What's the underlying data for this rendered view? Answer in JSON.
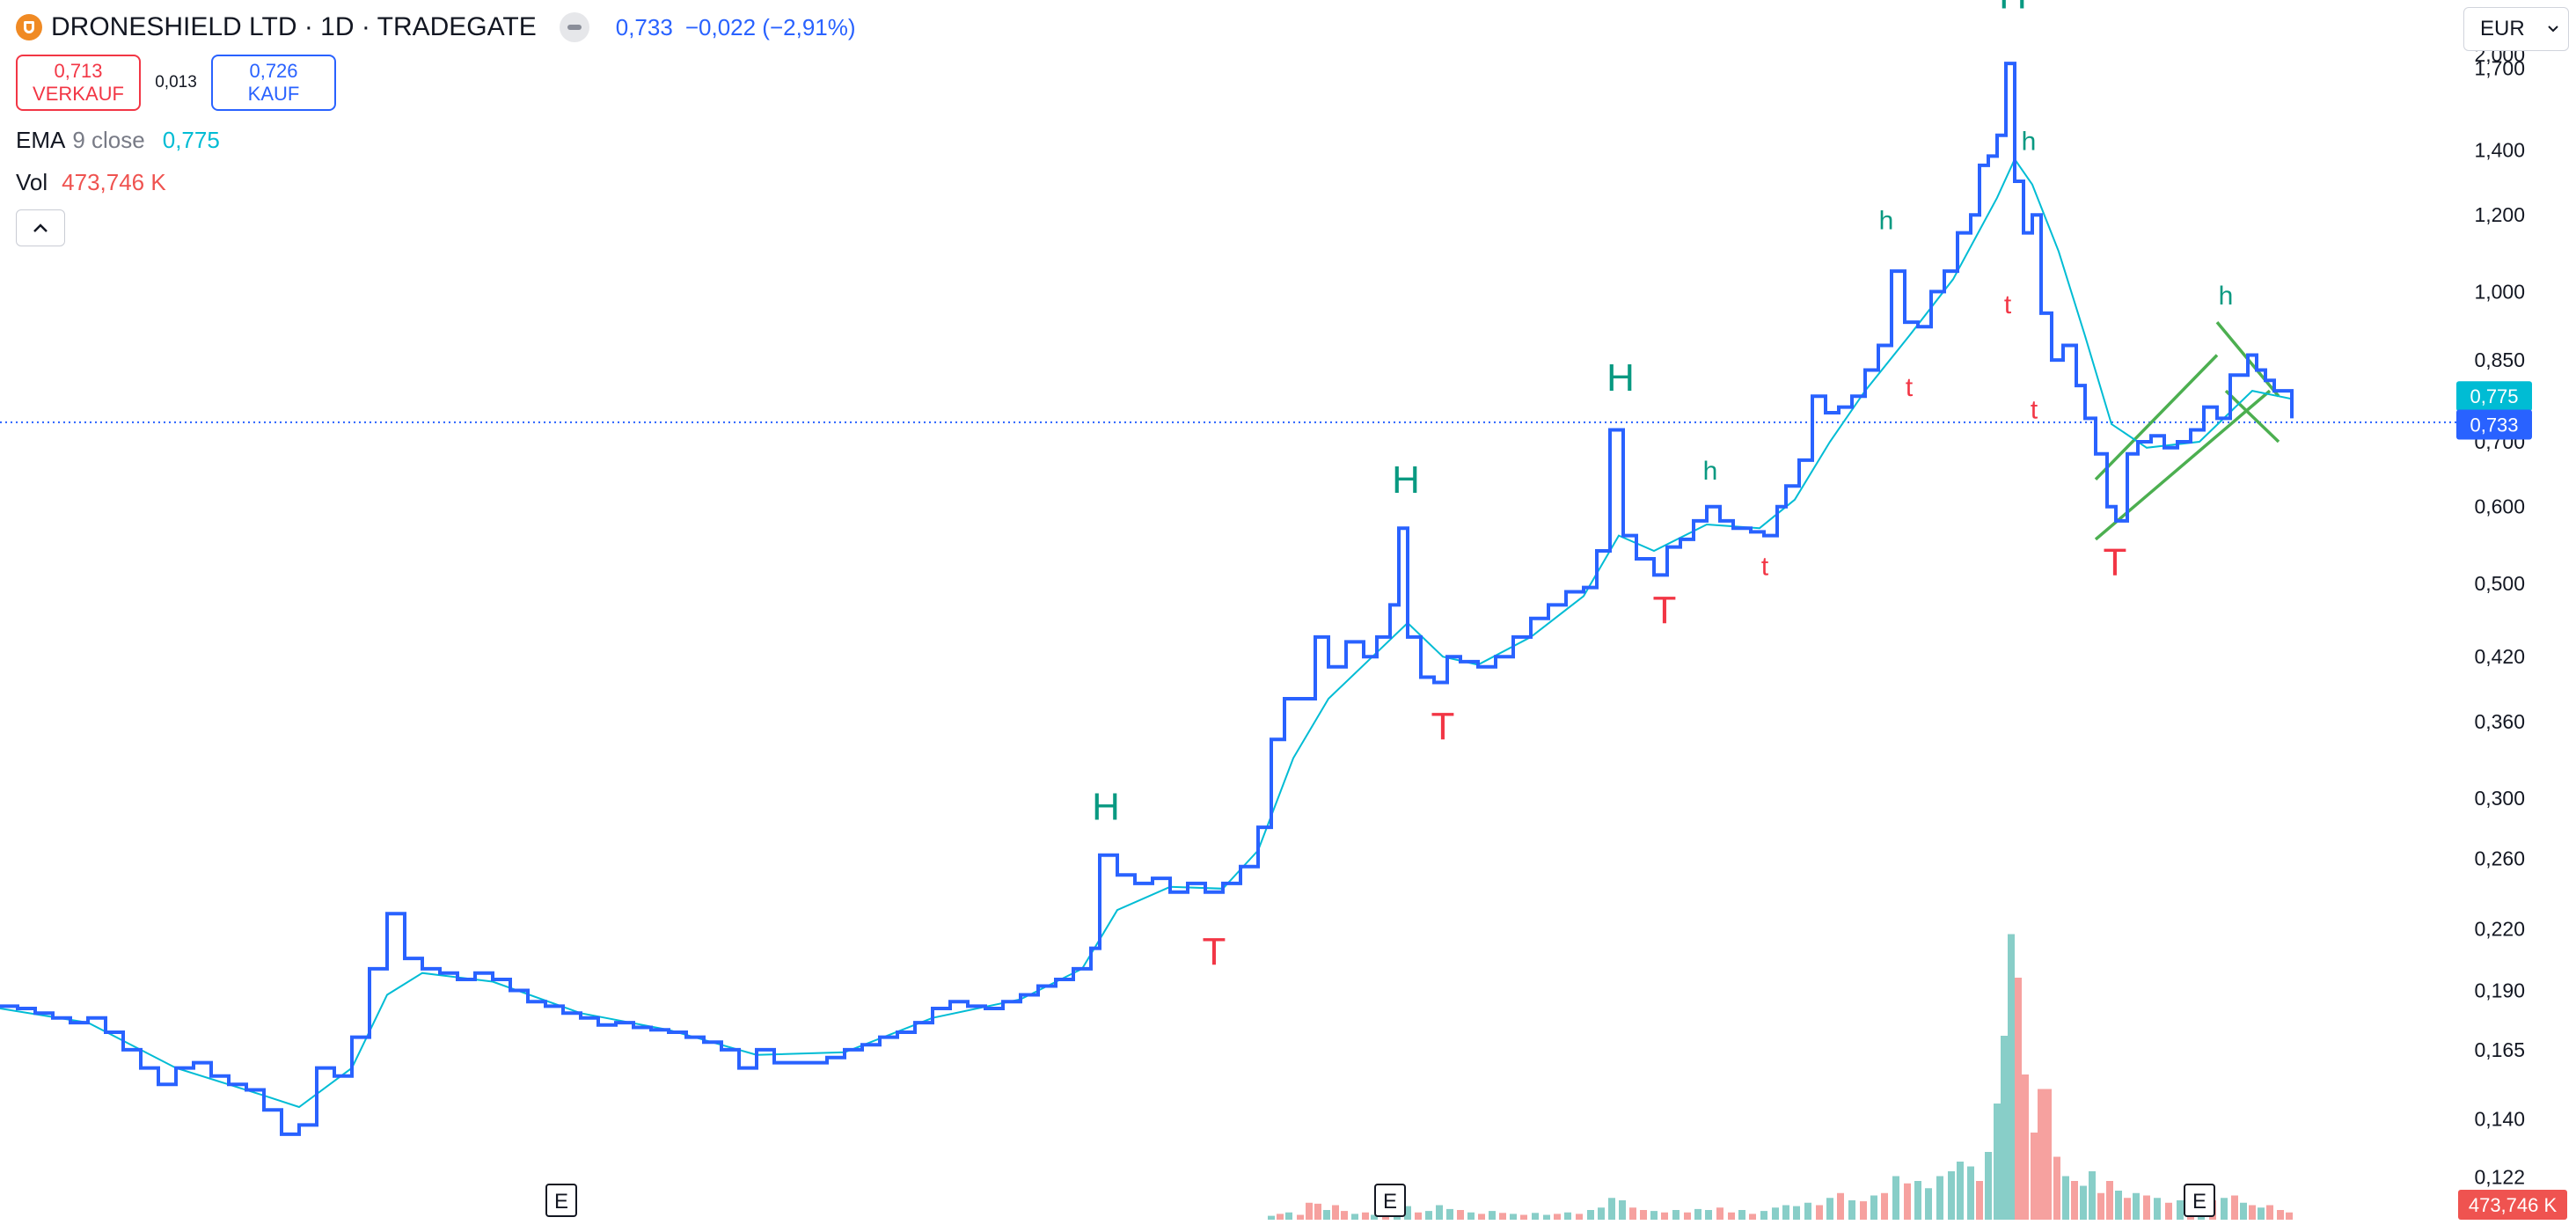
{
  "header": {
    "symbol_title": "DRONESHIELD LTD · 1D · TRADEGATE",
    "last_price": "0,733",
    "change": "−0,022 (−2,91%)"
  },
  "quote": {
    "sell_price": "0,713",
    "sell_label": "VERKAUF",
    "spread": "0,013",
    "buy_price": "0,726",
    "buy_label": "KAUF"
  },
  "indicators": {
    "ema_name": "EMA",
    "ema_params": "9 close",
    "ema_value": "0,775",
    "vol_name": "Vol",
    "vol_value": "473,746 K"
  },
  "currency": {
    "selected": "EUR"
  },
  "colors": {
    "price_line": "#2962ff",
    "ema_line": "#00bcd4",
    "channel": "#4caf50",
    "peak_label": "#089981",
    "trough_label": "#f23645",
    "vol_up": "#26a69a",
    "vol_down": "#ef5350"
  },
  "chart_data": {
    "type": "line",
    "scale": "log",
    "ylim": [
      0.107,
      2.0
    ],
    "y_ticks": [
      0.122,
      0.14,
      0.165,
      0.19,
      0.22,
      0.26,
      0.3,
      0.36,
      0.42,
      0.5,
      0.6,
      0.7,
      0.85,
      1.0,
      1.2,
      1.4,
      1.7
    ],
    "y_tick_labels": [
      "0,122",
      "0,140",
      "0,165",
      "0,190",
      "0,220",
      "0,260",
      "0,300",
      "0,360",
      "0,420",
      "0,500",
      "0,600",
      "0,700",
      "0,850",
      "1,000",
      "1,200",
      "1,400",
      "1,700"
    ],
    "partial_top_label": "2,000",
    "price_label": "0,733",
    "ema_label": "0,775",
    "volume_label": "473,746 K",
    "grid": false,
    "price_series": [
      [
        0,
        0.183
      ],
      [
        20,
        0.182
      ],
      [
        40,
        0.18
      ],
      [
        60,
        0.178
      ],
      [
        80,
        0.176
      ],
      [
        100,
        0.178
      ],
      [
        120,
        0.172
      ],
      [
        140,
        0.165
      ],
      [
        160,
        0.158
      ],
      [
        180,
        0.152
      ],
      [
        200,
        0.158
      ],
      [
        220,
        0.16
      ],
      [
        240,
        0.155
      ],
      [
        260,
        0.152
      ],
      [
        280,
        0.15
      ],
      [
        300,
        0.143
      ],
      [
        320,
        0.135
      ],
      [
        340,
        0.138
      ],
      [
        360,
        0.158
      ],
      [
        380,
        0.155
      ],
      [
        400,
        0.17
      ],
      [
        420,
        0.2
      ],
      [
        440,
        0.228
      ],
      [
        460,
        0.205
      ],
      [
        480,
        0.2
      ],
      [
        500,
        0.198
      ],
      [
        520,
        0.195
      ],
      [
        540,
        0.198
      ],
      [
        560,
        0.195
      ],
      [
        580,
        0.19
      ],
      [
        600,
        0.185
      ],
      [
        620,
        0.183
      ],
      [
        640,
        0.18
      ],
      [
        660,
        0.178
      ],
      [
        680,
        0.175
      ],
      [
        700,
        0.176
      ],
      [
        720,
        0.174
      ],
      [
        740,
        0.173
      ],
      [
        760,
        0.172
      ],
      [
        780,
        0.17
      ],
      [
        800,
        0.168
      ],
      [
        820,
        0.165
      ],
      [
        840,
        0.158
      ],
      [
        860,
        0.165
      ],
      [
        880,
        0.16
      ],
      [
        900,
        0.16
      ],
      [
        920,
        0.16
      ],
      [
        940,
        0.162
      ],
      [
        960,
        0.165
      ],
      [
        980,
        0.167
      ],
      [
        1000,
        0.17
      ],
      [
        1020,
        0.172
      ],
      [
        1040,
        0.176
      ],
      [
        1060,
        0.182
      ],
      [
        1080,
        0.185
      ],
      [
        1100,
        0.183
      ],
      [
        1120,
        0.182
      ],
      [
        1140,
        0.185
      ],
      [
        1160,
        0.188
      ],
      [
        1180,
        0.192
      ],
      [
        1200,
        0.195
      ],
      [
        1220,
        0.2
      ],
      [
        1240,
        0.21
      ],
      [
        1250,
        0.262
      ],
      [
        1270,
        0.25
      ],
      [
        1290,
        0.245
      ],
      [
        1310,
        0.248
      ],
      [
        1330,
        0.24
      ],
      [
        1350,
        0.245
      ],
      [
        1370,
        0.24
      ],
      [
        1390,
        0.245
      ],
      [
        1410,
        0.255
      ],
      [
        1430,
        0.28
      ],
      [
        1445,
        0.345
      ],
      [
        1460,
        0.38
      ],
      [
        1480,
        0.38
      ],
      [
        1495,
        0.44
      ],
      [
        1510,
        0.41
      ],
      [
        1530,
        0.435
      ],
      [
        1550,
        0.42
      ],
      [
        1565,
        0.44
      ],
      [
        1580,
        0.475
      ],
      [
        1590,
        0.57
      ],
      [
        1600,
        0.44
      ],
      [
        1615,
        0.4
      ],
      [
        1630,
        0.395
      ],
      [
        1645,
        0.42
      ],
      [
        1660,
        0.415
      ],
      [
        1680,
        0.41
      ],
      [
        1700,
        0.42
      ],
      [
        1720,
        0.44
      ],
      [
        1740,
        0.46
      ],
      [
        1760,
        0.475
      ],
      [
        1780,
        0.49
      ],
      [
        1800,
        0.495
      ],
      [
        1815,
        0.54
      ],
      [
        1830,
        0.72
      ],
      [
        1845,
        0.56
      ],
      [
        1860,
        0.53
      ],
      [
        1880,
        0.51
      ],
      [
        1895,
        0.545
      ],
      [
        1910,
        0.555
      ],
      [
        1925,
        0.58
      ],
      [
        1940,
        0.6
      ],
      [
        1955,
        0.58
      ],
      [
        1970,
        0.57
      ],
      [
        1990,
        0.565
      ],
      [
        2005,
        0.56
      ],
      [
        2020,
        0.6
      ],
      [
        2030,
        0.63
      ],
      [
        2045,
        0.67
      ],
      [
        2060,
        0.78
      ],
      [
        2075,
        0.75
      ],
      [
        2090,
        0.76
      ],
      [
        2105,
        0.78
      ],
      [
        2120,
        0.83
      ],
      [
        2135,
        0.88
      ],
      [
        2150,
        1.05
      ],
      [
        2165,
        0.93
      ],
      [
        2180,
        0.92
      ],
      [
        2195,
        1.0
      ],
      [
        2210,
        1.05
      ],
      [
        2225,
        1.15
      ],
      [
        2240,
        1.2
      ],
      [
        2250,
        1.35
      ],
      [
        2260,
        1.38
      ],
      [
        2270,
        1.45
      ],
      [
        2280,
        1.72
      ],
      [
        2290,
        1.3
      ],
      [
        2300,
        1.15
      ],
      [
        2310,
        1.2
      ],
      [
        2320,
        0.95
      ],
      [
        2332,
        0.85
      ],
      [
        2345,
        0.88
      ],
      [
        2360,
        0.8
      ],
      [
        2370,
        0.74
      ],
      [
        2382,
        0.68
      ],
      [
        2395,
        0.6
      ],
      [
        2405,
        0.58
      ],
      [
        2418,
        0.68
      ],
      [
        2430,
        0.7
      ],
      [
        2445,
        0.71
      ],
      [
        2460,
        0.69
      ],
      [
        2475,
        0.7
      ],
      [
        2490,
        0.72
      ],
      [
        2505,
        0.76
      ],
      [
        2520,
        0.74
      ],
      [
        2535,
        0.82
      ],
      [
        2545,
        0.82
      ],
      [
        2555,
        0.86
      ],
      [
        2565,
        0.83
      ],
      [
        2575,
        0.81
      ],
      [
        2585,
        0.79
      ],
      [
        2595,
        0.79
      ],
      [
        2605,
        0.74
      ]
    ],
    "ema_series": [
      [
        0,
        0.182
      ],
      [
        100,
        0.176
      ],
      [
        200,
        0.158
      ],
      [
        300,
        0.148
      ],
      [
        340,
        0.144
      ],
      [
        400,
        0.158
      ],
      [
        440,
        0.188
      ],
      [
        480,
        0.198
      ],
      [
        560,
        0.194
      ],
      [
        660,
        0.18
      ],
      [
        760,
        0.173
      ],
      [
        860,
        0.163
      ],
      [
        960,
        0.164
      ],
      [
        1060,
        0.178
      ],
      [
        1160,
        0.186
      ],
      [
        1230,
        0.2
      ],
      [
        1270,
        0.23
      ],
      [
        1330,
        0.243
      ],
      [
        1390,
        0.242
      ],
      [
        1430,
        0.265
      ],
      [
        1470,
        0.33
      ],
      [
        1510,
        0.38
      ],
      [
        1560,
        0.42
      ],
      [
        1600,
        0.455
      ],
      [
        1640,
        0.42
      ],
      [
        1680,
        0.412
      ],
      [
        1740,
        0.44
      ],
      [
        1800,
        0.485
      ],
      [
        1840,
        0.56
      ],
      [
        1880,
        0.54
      ],
      [
        1940,
        0.575
      ],
      [
        2000,
        0.57
      ],
      [
        2040,
        0.61
      ],
      [
        2080,
        0.7
      ],
      [
        2120,
        0.79
      ],
      [
        2170,
        0.9
      ],
      [
        2220,
        1.03
      ],
      [
        2270,
        1.25
      ],
      [
        2290,
        1.37
      ],
      [
        2310,
        1.29
      ],
      [
        2340,
        1.1
      ],
      [
        2370,
        0.9
      ],
      [
        2400,
        0.73
      ],
      [
        2440,
        0.69
      ],
      [
        2500,
        0.7
      ],
      [
        2560,
        0.79
      ],
      [
        2605,
        0.775
      ]
    ],
    "peak_labels": [
      {
        "text": "H",
        "x": 1257,
        "y": 0.285
      },
      {
        "text": "H",
        "x": 1598,
        "y": 0.62
      },
      {
        "text": "H",
        "x": 1842,
        "y": 0.79
      },
      {
        "text": "h",
        "x": 1944,
        "y": 0.64
      },
      {
        "text": "h",
        "x": 2144,
        "y": 1.16
      },
      {
        "text": "H",
        "x": 2288,
        "y": 1.96
      },
      {
        "text": "h",
        "x": 2306,
        "y": 1.4
      },
      {
        "text": "h",
        "x": 2530,
        "y": 0.97
      }
    ],
    "trough_labels": [
      {
        "text": "T",
        "x": 1380,
        "y": 0.202
      },
      {
        "text": "T",
        "x": 1640,
        "y": 0.345
      },
      {
        "text": "T",
        "x": 1892,
        "y": 0.455
      },
      {
        "text": "t",
        "x": 2006,
        "y": 0.51
      },
      {
        "text": "t",
        "x": 2170,
        "y": 0.78
      },
      {
        "text": "t",
        "x": 2282,
        "y": 0.95
      },
      {
        "text": "t",
        "x": 2312,
        "y": 0.74
      },
      {
        "text": "T",
        "x": 2404,
        "y": 0.51
      }
    ],
    "channel": {
      "lower": [
        [
          2382,
          0.555
        ],
        [
          2580,
          0.79
        ]
      ],
      "upper": [
        [
          2382,
          0.64
        ],
        [
          2520,
          0.86
        ]
      ],
      "top_cap": [
        [
          2520,
          0.93
        ],
        [
          2590,
          0.78
        ]
      ],
      "flag_lower": [
        [
          2530,
          0.79
        ],
        [
          2590,
          0.7
        ]
      ]
    },
    "volume_bars": [
      [
        1445,
        0.08,
        "up"
      ],
      [
        1455,
        0.12,
        "down"
      ],
      [
        1465,
        0.15,
        "up"
      ],
      [
        1478,
        0.1,
        "down"
      ],
      [
        1488,
        0.35,
        "down"
      ],
      [
        1498,
        0.33,
        "down"
      ],
      [
        1508,
        0.2,
        "up"
      ],
      [
        1518,
        0.3,
        "down"
      ],
      [
        1528,
        0.18,
        "down"
      ],
      [
        1540,
        0.12,
        "up"
      ],
      [
        1552,
        0.15,
        "down"
      ],
      [
        1562,
        0.1,
        "up"
      ],
      [
        1575,
        0.12,
        "down"
      ],
      [
        1588,
        0.25,
        "up"
      ],
      [
        1600,
        0.28,
        "up"
      ],
      [
        1612,
        0.15,
        "down"
      ],
      [
        1624,
        0.18,
        "up"
      ],
      [
        1636,
        0.3,
        "up"
      ],
      [
        1648,
        0.22,
        "up"
      ],
      [
        1660,
        0.2,
        "down"
      ],
      [
        1672,
        0.15,
        "up"
      ],
      [
        1684,
        0.12,
        "down"
      ],
      [
        1696,
        0.18,
        "up"
      ],
      [
        1708,
        0.14,
        "down"
      ],
      [
        1720,
        0.12,
        "up"
      ],
      [
        1732,
        0.1,
        "down"
      ],
      [
        1745,
        0.14,
        "up"
      ],
      [
        1758,
        0.1,
        "up"
      ],
      [
        1770,
        0.12,
        "down"
      ],
      [
        1782,
        0.15,
        "up"
      ],
      [
        1795,
        0.12,
        "down"
      ],
      [
        1808,
        0.2,
        "up"
      ],
      [
        1820,
        0.25,
        "up"
      ],
      [
        1832,
        0.45,
        "up"
      ],
      [
        1844,
        0.4,
        "up"
      ],
      [
        1856,
        0.25,
        "down"
      ],
      [
        1868,
        0.2,
        "down"
      ],
      [
        1880,
        0.18,
        "up"
      ],
      [
        1892,
        0.15,
        "down"
      ],
      [
        1905,
        0.2,
        "up"
      ],
      [
        1918,
        0.15,
        "down"
      ],
      [
        1930,
        0.22,
        "up"
      ],
      [
        1942,
        0.2,
        "up"
      ],
      [
        1955,
        0.25,
        "down"
      ],
      [
        1968,
        0.15,
        "down"
      ],
      [
        1980,
        0.2,
        "up"
      ],
      [
        1992,
        0.12,
        "down"
      ],
      [
        2005,
        0.18,
        "up"
      ],
      [
        2018,
        0.25,
        "up"
      ],
      [
        2030,
        0.3,
        "up"
      ],
      [
        2042,
        0.28,
        "up"
      ],
      [
        2055,
        0.35,
        "up"
      ],
      [
        2068,
        0.3,
        "down"
      ],
      [
        2080,
        0.45,
        "up"
      ],
      [
        2092,
        0.55,
        "down"
      ],
      [
        2105,
        0.4,
        "up"
      ],
      [
        2118,
        0.38,
        "down"
      ],
      [
        2130,
        0.5,
        "up"
      ],
      [
        2142,
        0.55,
        "down"
      ],
      [
        2155,
        0.9,
        "up"
      ],
      [
        2168,
        0.75,
        "down"
      ],
      [
        2180,
        0.8,
        "up"
      ],
      [
        2192,
        0.65,
        "up"
      ],
      [
        2205,
        0.9,
        "up"
      ],
      [
        2218,
        1.0,
        "up"
      ],
      [
        2228,
        1.2,
        "up"
      ],
      [
        2240,
        1.1,
        "up"
      ],
      [
        2250,
        0.8,
        "down"
      ],
      [
        2260,
        1.4,
        "up"
      ],
      [
        2270,
        2.4,
        "up"
      ],
      [
        2278,
        3.8,
        "up"
      ],
      [
        2286,
        5.9,
        "up"
      ],
      [
        2294,
        5.0,
        "down"
      ],
      [
        2302,
        3.0,
        "down"
      ],
      [
        2312,
        1.8,
        "down"
      ],
      [
        2320,
        2.7,
        "down"
      ],
      [
        2328,
        2.7,
        "down"
      ],
      [
        2338,
        1.3,
        "down"
      ],
      [
        2348,
        0.9,
        "up"
      ],
      [
        2358,
        0.8,
        "down"
      ],
      [
        2368,
        0.7,
        "up"
      ],
      [
        2378,
        1.0,
        "up"
      ],
      [
        2388,
        0.55,
        "down"
      ],
      [
        2398,
        0.8,
        "down"
      ],
      [
        2408,
        0.6,
        "up"
      ],
      [
        2418,
        0.45,
        "down"
      ],
      [
        2428,
        0.55,
        "up"
      ],
      [
        2440,
        0.5,
        "down"
      ],
      [
        2452,
        0.45,
        "up"
      ],
      [
        2465,
        0.35,
        "down"
      ],
      [
        2478,
        0.4,
        "up"
      ],
      [
        2490,
        0.35,
        "down"
      ],
      [
        2502,
        0.5,
        "up"
      ],
      [
        2515,
        0.4,
        "down"
      ],
      [
        2528,
        0.45,
        "up"
      ],
      [
        2540,
        0.5,
        "down"
      ],
      [
        2550,
        0.35,
        "up"
      ],
      [
        2560,
        0.3,
        "down"
      ],
      [
        2570,
        0.25,
        "up"
      ],
      [
        2580,
        0.3,
        "down"
      ],
      [
        2592,
        0.2,
        "down"
      ],
      [
        2602,
        0.15,
        "down"
      ]
    ],
    "earnings_markers": [
      {
        "text": "E",
        "x": 638
      },
      {
        "text": "E",
        "x": 1580
      },
      {
        "text": "E",
        "x": 2500
      }
    ]
  }
}
